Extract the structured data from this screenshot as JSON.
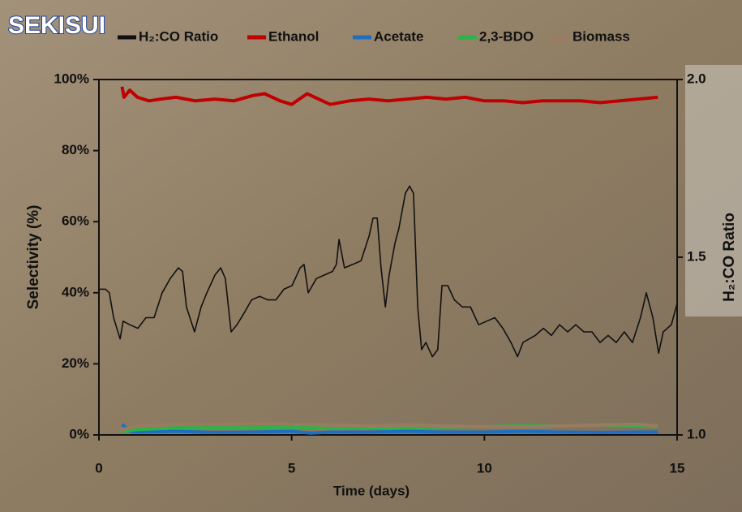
{
  "logo": "SEKISUI",
  "chart_data": {
    "type": "line",
    "x_label": "Time (days)",
    "y_label": "Selectivity (%)",
    "y2_label": "H₂:CO Ratio",
    "xlim": [
      0,
      15
    ],
    "xticks": [
      0,
      5,
      10,
      15
    ],
    "ylim": [
      0,
      100
    ],
    "yticks": [
      {
        "value": 0,
        "label": "0%"
      },
      {
        "value": 20,
        "label": "20%"
      },
      {
        "value": 40,
        "label": "40%"
      },
      {
        "value": 60,
        "label": "60%"
      },
      {
        "value": 80,
        "label": "80%"
      },
      {
        "value": 100,
        "label": "100%"
      }
    ],
    "y2lim": [
      1,
      2
    ],
    "y2ticks": [
      {
        "value": 1,
        "label": "1.0"
      },
      1.5,
      {
        "value": 2,
        "label": "2.0"
      }
    ],
    "series": [
      {
        "name": "H₂:CO Ratio",
        "color": "#111111",
        "axis": "y2",
        "x": [
          0,
          0.17,
          0.27,
          0.38,
          0.55,
          0.63,
          0.8,
          1.01,
          1.22,
          1.43,
          1.64,
          1.85,
          2.06,
          2.17,
          2.27,
          2.48,
          2.65,
          2.8,
          3.01,
          3.16,
          3.28,
          3.43,
          3.58,
          3.75,
          3.96,
          4.17,
          4.38,
          4.59,
          4.8,
          5.01,
          5.22,
          5.32,
          5.43,
          5.64,
          5.85,
          6.06,
          6.16,
          6.23,
          6.37,
          6.59,
          6.8,
          7.01,
          7.11,
          7.22,
          7.32,
          7.43,
          7.53,
          7.68,
          7.78,
          7.95,
          8.06,
          8.16,
          8.27,
          8.37,
          8.48,
          8.65,
          8.79,
          8.9,
          9.05,
          9.22,
          9.43,
          9.64,
          9.85,
          10.06,
          10.27,
          10.48,
          10.69,
          10.86,
          11.0,
          11.32,
          11.53,
          11.74,
          11.95,
          12.16,
          12.37,
          12.58,
          12.79,
          13.0,
          13.21,
          13.42,
          13.63,
          13.84,
          14.05,
          14.2,
          14.37,
          14.52,
          14.64,
          14.85,
          15
        ],
        "values": [
          1.41,
          1.41,
          1.4,
          1.33,
          1.27,
          1.32,
          1.31,
          1.3,
          1.33,
          1.33,
          1.4,
          1.44,
          1.47,
          1.46,
          1.36,
          1.29,
          1.36,
          1.4,
          1.45,
          1.47,
          1.44,
          1.29,
          1.31,
          1.34,
          1.38,
          1.39,
          1.38,
          1.38,
          1.41,
          1.42,
          1.47,
          1.48,
          1.4,
          1.44,
          1.45,
          1.46,
          1.48,
          1.55,
          1.47,
          1.48,
          1.49,
          1.56,
          1.61,
          1.61,
          1.47,
          1.36,
          1.45,
          1.54,
          1.58,
          1.68,
          1.7,
          1.68,
          1.36,
          1.24,
          1.26,
          1.22,
          1.24,
          1.42,
          1.42,
          1.38,
          1.36,
          1.36,
          1.31,
          1.32,
          1.33,
          1.3,
          1.26,
          1.22,
          1.26,
          1.28,
          1.3,
          1.28,
          1.31,
          1.29,
          1.31,
          1.29,
          1.29,
          1.26,
          1.28,
          1.26,
          1.29,
          1.26,
          1.33,
          1.4,
          1.33,
          1.23,
          1.29,
          1.31,
          1.37
        ]
      },
      {
        "name": "Ethanol",
        "color": "#c00000",
        "x": [
          0.6,
          0.65,
          0.8,
          1.0,
          1.3,
          1.6,
          2,
          2.5,
          3,
          3.5,
          4,
          4.3,
          4.7,
          5,
          5.4,
          5.8,
          6,
          6.5,
          7,
          7.5,
          8,
          8.5,
          9,
          9.5,
          10,
          10.5,
          11,
          11.5,
          12,
          12.5,
          13,
          13.5,
          14,
          14.5
        ],
        "values": [
          98,
          95,
          97,
          95,
          94,
          94.5,
          95,
          94,
          94.5,
          94,
          95.5,
          96,
          94,
          93,
          96,
          94,
          93,
          94,
          94.5,
          94,
          94.5,
          95,
          94.5,
          95,
          94,
          94,
          93.5,
          94,
          94,
          94,
          93.5,
          94,
          94.5,
          95
        ]
      },
      {
        "name": "Acetate",
        "color": "#1f6fc0",
        "x": [
          0.6,
          0.8,
          1,
          2,
          3,
          4,
          5,
          5.5,
          6,
          7,
          8,
          9,
          10,
          11,
          12,
          13,
          14,
          14.5
        ],
        "values": [
          3,
          1,
          0.8,
          1,
          0.7,
          0.8,
          1,
          0.5,
          0.8,
          0.8,
          1,
          0.8,
          0.8,
          1,
          0.8,
          0.7,
          0.8,
          0.8
        ]
      },
      {
        "name": "2,3-BDO",
        "color": "#2db34a",
        "x": [
          0.6,
          1,
          2,
          3,
          4,
          5,
          6,
          7,
          8,
          9,
          10,
          11,
          12,
          13,
          14,
          14.5
        ],
        "values": [
          1,
          1.5,
          2,
          2,
          2,
          2.2,
          1.8,
          2,
          2,
          2.2,
          2.3,
          2.5,
          2.5,
          2.8,
          2.5,
          2.3
        ]
      },
      {
        "name": "Biomass",
        "color": "#9b7b60",
        "x": [
          0.6,
          1,
          2,
          3,
          4,
          5,
          6,
          7,
          8,
          9,
          10,
          11,
          12,
          13,
          14,
          14.5
        ],
        "values": [
          1.5,
          2.5,
          3,
          3,
          3.2,
          3,
          2.8,
          2.5,
          2.8,
          2.5,
          2.3,
          2.2,
          2.5,
          2.8,
          3,
          2.5
        ]
      }
    ]
  }
}
